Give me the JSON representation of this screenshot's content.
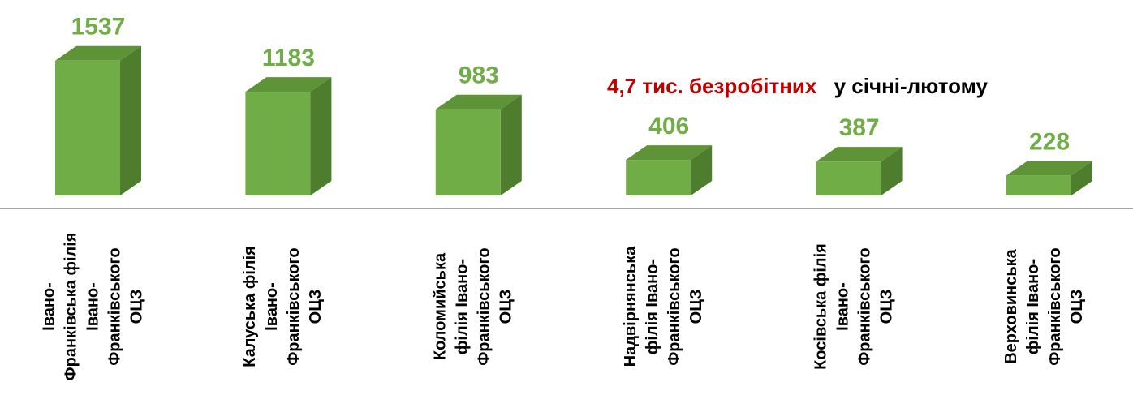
{
  "chart_data": {
    "type": "bar3d",
    "categories": [
      [
        "Івано-",
        "Франківська філія",
        "Івано-",
        "Франківського",
        "ОЦЗ"
      ],
      [
        "Калуська філія",
        "Івано-",
        "Франківського",
        "ОЦЗ"
      ],
      [
        "Коломийська",
        "філія Івано-",
        "Франківського",
        "ОЦЗ"
      ],
      [
        "Надвірнянська",
        "філія Івано-",
        "Франківського",
        "ОЦЗ"
      ],
      [
        "Косівська філія",
        "Івано-",
        "Франківського",
        "ОЦЗ"
      ],
      [
        "Верховинська",
        "філія Івано-",
        "Франківського",
        "ОЦЗ"
      ]
    ],
    "values": [
      1537,
      1183,
      983,
      406,
      387,
      228
    ],
    "color": "#70ad47",
    "side_color": "#4e7d2e",
    "top_color": "#5e9437",
    "ylim": [
      0,
      1600
    ],
    "annotation": [
      {
        "text": "4,7 тис. безробітних",
        "color": "#c00000"
      },
      {
        "text": "у січні-лютому",
        "color": "#000000"
      }
    ]
  }
}
